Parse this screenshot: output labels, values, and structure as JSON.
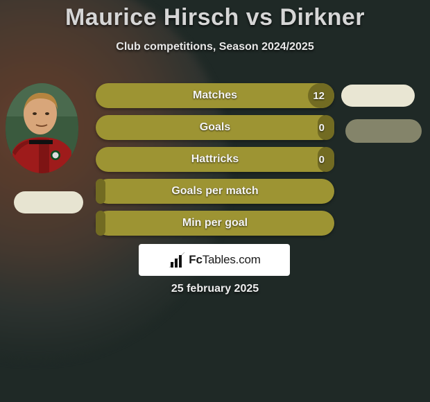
{
  "title": "Maurice Hirsch vs Dirkner",
  "subtitle": "Club competitions, Season 2024/2025",
  "date": "25 february 2025",
  "logo": {
    "prefix": "Fc",
    "suffix": "Tables.com"
  },
  "colors": {
    "bar_outer": "#9d9433",
    "bar_inner": "#726b22",
    "bg": "#1f2926",
    "pill_light": "#e7e4d1",
    "pill_dark": "#84846a"
  },
  "bars": [
    {
      "label": "Matches",
      "value_right": "12",
      "fill_right_pct": 11,
      "fill_left_pct": 0
    },
    {
      "label": "Goals",
      "value_right": "0",
      "fill_right_pct": 7,
      "fill_left_pct": 0
    },
    {
      "label": "Hattricks",
      "value_right": "0",
      "fill_right_pct": 7,
      "fill_left_pct": 0
    },
    {
      "label": "Goals per match",
      "value_right": "",
      "fill_right_pct": 0,
      "fill_left_pct": 4
    },
    {
      "label": "Min per goal",
      "value_right": "",
      "fill_right_pct": 0,
      "fill_left_pct": 4
    }
  ]
}
